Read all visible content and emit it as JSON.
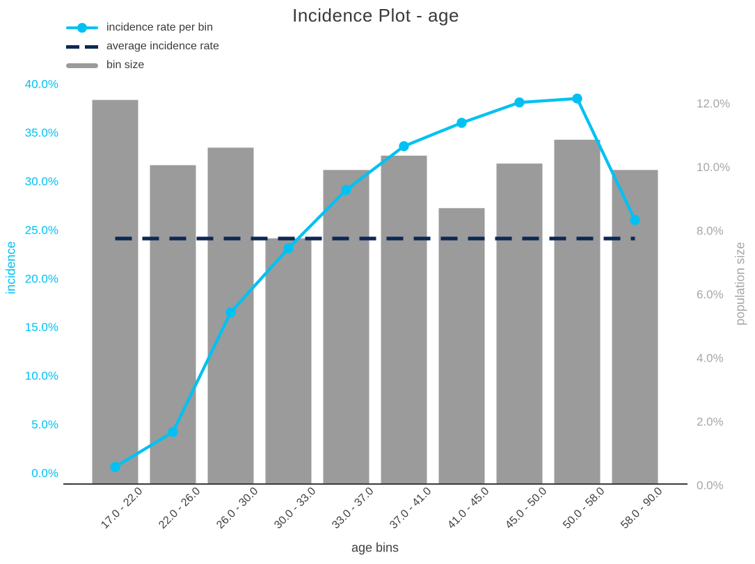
{
  "title": "Incidence Plot - age",
  "colors": {
    "incidence_line": "#00c1f2",
    "average_line": "#0d2853",
    "bar": "#9b9b9b",
    "left_axis_text": "#00c1f2",
    "right_axis_text": "#a6a6a6",
    "dark_text": "#3a3a3a",
    "x_tick_text": "#3f3f3f",
    "axis_line": "#3a3a3a"
  },
  "legend": {
    "position": "top-left",
    "items": [
      {
        "swatch": "line-with-marker",
        "label": "incidence rate per bin"
      },
      {
        "swatch": "dashed-line",
        "label": "average incidence rate"
      },
      {
        "swatch": "bar",
        "label": "bin size"
      }
    ]
  },
  "chart_data": {
    "type": "bar",
    "title": "Incidence Plot - age",
    "xlabel": "age bins",
    "ylabel_left": "incidence",
    "ylabel_right": "population size",
    "grid": false,
    "legend_position": "top-left",
    "categories": [
      "17.0 - 22.0",
      "22.0 - 26.0",
      "26.0 - 30.0",
      "30.0 - 33.0",
      "33.0 - 37.0",
      "37.0 - 41.0",
      "41.0 - 45.0",
      "45.0 - 50.0",
      "50.0 - 58.0",
      "58.0 - 90.0"
    ],
    "series": [
      {
        "name": "bin size",
        "kind": "bar",
        "axis": "right",
        "unit": "%",
        "values": [
          12.1,
          10.05,
          10.6,
          7.75,
          9.9,
          10.35,
          8.7,
          10.1,
          10.85,
          9.9
        ]
      },
      {
        "name": "incidence rate per bin",
        "kind": "line",
        "axis": "left",
        "unit": "%",
        "values": [
          0.6,
          4.2,
          16.5,
          23.1,
          29.1,
          33.6,
          36.0,
          38.1,
          38.5,
          26.0
        ]
      },
      {
        "name": "average incidence rate",
        "kind": "hline",
        "axis": "left",
        "unit": "%",
        "value": 24.1
      }
    ],
    "axes": {
      "left": {
        "label": "incidence",
        "tick_values": [
          0,
          5,
          10,
          15,
          20,
          25,
          30,
          35,
          40
        ],
        "ticks": [
          "0.0%",
          "5.0%",
          "10.0%",
          "15.0%",
          "20.0%",
          "25.0%",
          "30.0%",
          "35.0%",
          "40.0%"
        ],
        "range": [
          -1.2,
          41.5
        ]
      },
      "right": {
        "label": "population size",
        "tick_values": [
          0,
          2,
          4,
          6,
          8,
          10,
          12
        ],
        "ticks": [
          "0.0%",
          "2.0%",
          "4.0%",
          "6.0%",
          "8.0%",
          "10.0%",
          "12.0%"
        ],
        "range": [
          0,
          13.0
        ]
      }
    }
  }
}
